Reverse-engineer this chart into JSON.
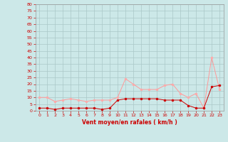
{
  "x": [
    0,
    1,
    2,
    3,
    4,
    5,
    6,
    7,
    8,
    9,
    10,
    11,
    12,
    13,
    14,
    15,
    16,
    17,
    18,
    19,
    20,
    21,
    22,
    23
  ],
  "y_mean": [
    2,
    2,
    1,
    2,
    2,
    2,
    2,
    2,
    1,
    2,
    8,
    9,
    9,
    9,
    9,
    9,
    8,
    8,
    8,
    4,
    2,
    2,
    18,
    19
  ],
  "y_gust": [
    10,
    10,
    7,
    8,
    9,
    8,
    7,
    8,
    8,
    8,
    10,
    24,
    20,
    16,
    16,
    16,
    19,
    20,
    13,
    10,
    13,
    2,
    40,
    16
  ],
  "bg_color": "#cce8e8",
  "grid_color": "#aac8c8",
  "line_mean_color": "#cc0000",
  "line_gust_color": "#ff9999",
  "marker_mean_color": "#cc0000",
  "marker_gust_color": "#ffaaaa",
  "xlabel": "Vent moyen/en rafales ( km/h )",
  "xlabel_color": "#cc0000",
  "tick_color": "#cc0000",
  "yticks": [
    0,
    5,
    10,
    15,
    20,
    25,
    30,
    35,
    40,
    45,
    50,
    55,
    60,
    65,
    70,
    75,
    80
  ],
  "ylim": [
    0,
    80
  ],
  "xlim_min": -0.5,
  "xlim_max": 23.5
}
